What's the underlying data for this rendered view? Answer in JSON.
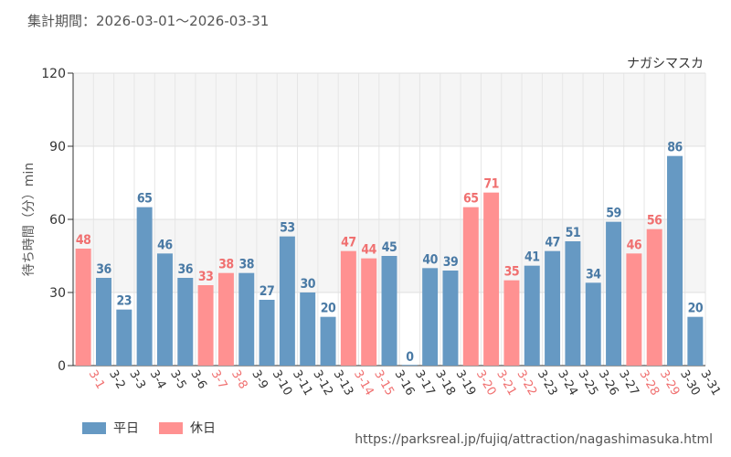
{
  "header": {
    "period": "集計期間：2026-03-01〜2026-03-31"
  },
  "chart_data": {
    "type": "bar",
    "subtitle": "ナガシマスカ",
    "ylabel": "待ち時間（分）min",
    "ylim": [
      0,
      120
    ],
    "yticks": [
      0,
      30,
      60,
      90,
      120
    ],
    "grid": true,
    "categories": [
      "3-1",
      "3-2",
      "3-3",
      "3-4",
      "3-5",
      "3-6",
      "3-7",
      "3-8",
      "3-9",
      "3-10",
      "3-11",
      "3-12",
      "3-13",
      "3-14",
      "3-15",
      "3-16",
      "3-17",
      "3-18",
      "3-19",
      "3-20",
      "3-21",
      "3-22",
      "3-23",
      "3-24",
      "3-25",
      "3-26",
      "3-27",
      "3-28",
      "3-29",
      "3-30",
      "3-31"
    ],
    "values": [
      48,
      36,
      23,
      65,
      46,
      36,
      33,
      38,
      38,
      27,
      53,
      30,
      20,
      47,
      44,
      45,
      0,
      40,
      39,
      65,
      71,
      35,
      41,
      47,
      51,
      34,
      59,
      46,
      56,
      86,
      20
    ],
    "day_type": [
      "休日",
      "平日",
      "平日",
      "平日",
      "平日",
      "平日",
      "休日",
      "休日",
      "平日",
      "平日",
      "平日",
      "平日",
      "平日",
      "休日",
      "休日",
      "平日",
      "平日",
      "平日",
      "平日",
      "休日",
      "休日",
      "休日",
      "平日",
      "平日",
      "平日",
      "平日",
      "平日",
      "休日",
      "休日",
      "平日",
      "平日"
    ],
    "colors": {
      "平日": "#6699c3",
      "休日": "#ff9191"
    },
    "label_colors": {
      "平日": "#4a7aa5",
      "休日": "#f07070"
    },
    "legend": [
      {
        "name": "平日",
        "color": "#6699c3"
      },
      {
        "name": "休日",
        "color": "#ff9191"
      }
    ],
    "legend_position": "bottom-left"
  },
  "footer": {
    "url": "https://parksreal.jp/fujiq/attraction/nagashimasuka.html"
  }
}
